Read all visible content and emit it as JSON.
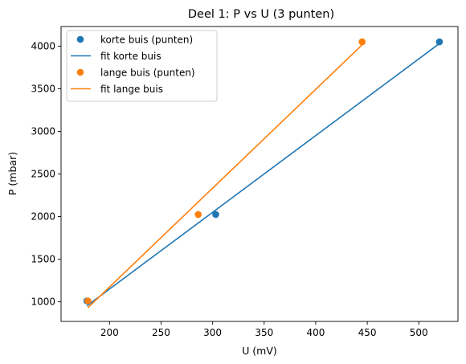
{
  "chart_data": {
    "type": "scatter",
    "title": "Deel 1: P vs U (3 punten)",
    "xlabel": "U (mV)",
    "ylabel": "P (mbar)",
    "xlim": [
      153,
      538
    ],
    "ylim": [
      770,
      4230
    ],
    "xticks": [
      200,
      250,
      300,
      350,
      400,
      450,
      500
    ],
    "yticks": [
      1000,
      1500,
      2000,
      2500,
      3000,
      3500,
      4000
    ],
    "grid": false,
    "legend_position": "top-left",
    "series": [
      {
        "name": "korte buis (punten)",
        "kind": "scatter",
        "color": "#1f77b4",
        "x": [
          178,
          303,
          520
        ],
        "y": [
          1010,
          2025,
          4050
        ]
      },
      {
        "name": "fit korte buis",
        "kind": "line",
        "color": "#1f77b4",
        "x": [
          178,
          520
        ],
        "y": [
          952,
          4030
        ]
      },
      {
        "name": "lange buis (punten)",
        "kind": "scatter",
        "color": "#ff7f0e",
        "x": [
          179,
          286,
          445
        ],
        "y": [
          1010,
          2025,
          4050
        ]
      },
      {
        "name": "fit lange buis",
        "kind": "line",
        "color": "#ff7f0e",
        "x": [
          179,
          445
        ],
        "y": [
          930,
          4015
        ]
      }
    ]
  }
}
